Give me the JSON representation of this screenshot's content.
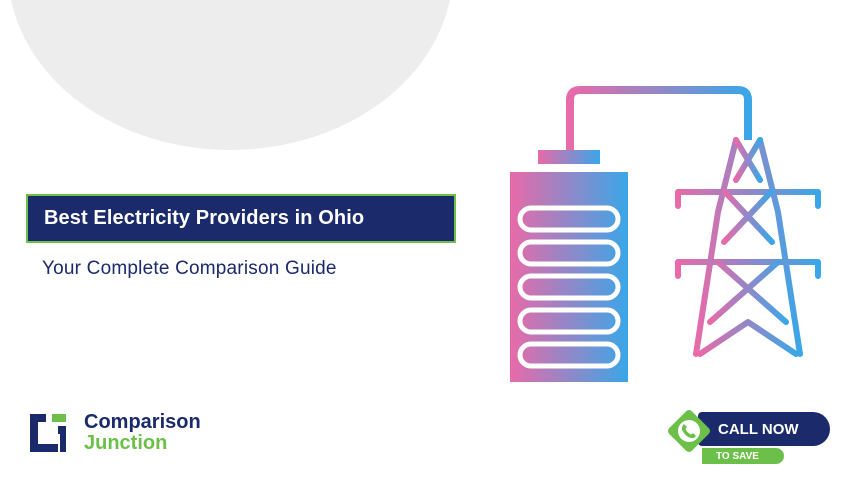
{
  "banner": {
    "title": "Best Electricity Providers in Ohio",
    "subtitle": "Your Complete Comparison Guide"
  },
  "brand": {
    "name_line1": "Comparison",
    "name_line2": "Junction",
    "logo_icon": "comparison-junction-logo-icon"
  },
  "cta": {
    "label": "CALL NOW",
    "sublabel": "TO SAVE",
    "icon": "phone-icon"
  },
  "illustration": {
    "battery_icon": "battery-icon",
    "tower_icon": "power-tower-icon"
  },
  "colors": {
    "navy": "#1b2a6b",
    "green": "#6cc04a",
    "gradient_pink": "#e86aa8",
    "gradient_blue": "#3aa6e8",
    "background_circle": "#ededed"
  }
}
